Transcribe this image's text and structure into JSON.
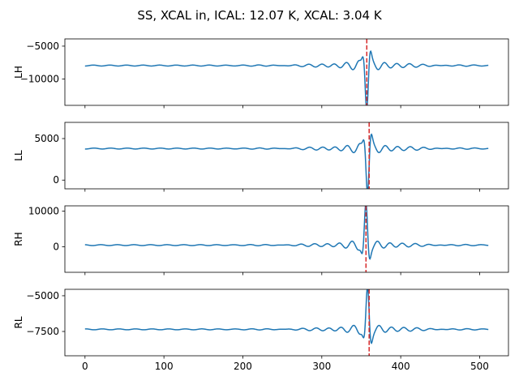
{
  "title": "SS, XCAL in, ICAL: 12.07 K, XCAL: 3.04 K",
  "colors": {
    "line": "#1f77b4",
    "marker": "#d62728",
    "axis": "#000000"
  },
  "chart_data": {
    "type": "line",
    "x_ticks": [
      0,
      100,
      200,
      300,
      400,
      500
    ],
    "x_range": [
      -25.5,
      536.5
    ],
    "panels": [
      {
        "ylabel": "LH",
        "ylim": [
          -14000,
          -3900
        ],
        "y_ticks": [
          -10000,
          -5000
        ],
        "y_tick_labels": [
          "−10000",
          "−5000"
        ],
        "baseline": -7950,
        "peak": -13800,
        "peak_x": 357,
        "polarity": -1,
        "marker_x": 357
      },
      {
        "ylabel": "LL",
        "ylim": [
          -1050,
          6950
        ],
        "y_ticks": [
          0,
          5000
        ],
        "y_tick_labels": [
          "0",
          "5000"
        ],
        "baseline": 3800,
        "peak": -800,
        "peak_x": 358,
        "polarity": -1,
        "marker_x": 360
      },
      {
        "ylabel": "RH",
        "ylim": [
          -7200,
          11500
        ],
        "y_ticks": [
          0,
          10000
        ],
        "y_tick_labels": [
          "0",
          "10000"
        ],
        "baseline": 450,
        "peak": 10900,
        "peak_x": 356,
        "polarity": 1,
        "marker_x": 356
      },
      {
        "ylabel": "RL",
        "ylim": [
          -9200,
          -4550
        ],
        "y_ticks": [
          -7500,
          -5000
        ],
        "y_tick_labels": [
          "−7500",
          "−5000"
        ],
        "baseline": -7350,
        "peak": -4750,
        "peak_x": 358,
        "polarity": 1,
        "marker_x": 360
      }
    ]
  }
}
